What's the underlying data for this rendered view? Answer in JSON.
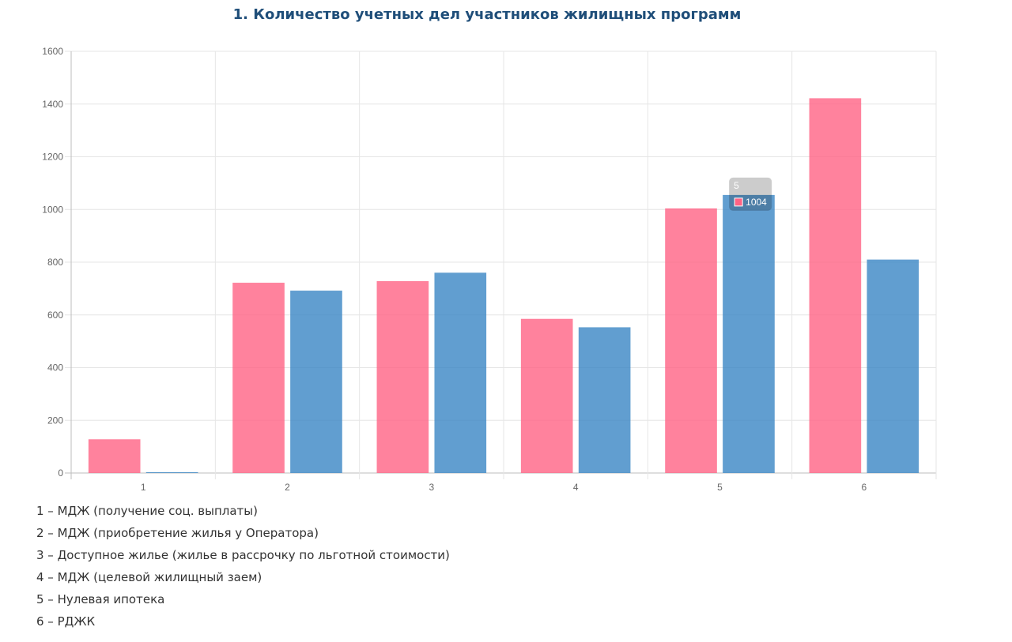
{
  "title": "1. Количество учетных дел участников жилищных программ",
  "chart_data": {
    "type": "bar",
    "categories": [
      "1",
      "2",
      "3",
      "4",
      "5",
      "6"
    ],
    "series": [
      {
        "values": [
          128,
          722,
          728,
          585,
          1004,
          1422
        ],
        "color": "#ff6384"
      },
      {
        "values": [
          3,
          692,
          760,
          553,
          1055,
          810
        ],
        "color": "#3a86c4"
      }
    ],
    "ylim": [
      0,
      1600
    ],
    "yticks": [
      0,
      200,
      400,
      600,
      800,
      1000,
      1200,
      1400,
      1600
    ],
    "grid": true,
    "tooltip": {
      "title": "5",
      "value": "1004",
      "series_index": 0
    }
  },
  "legend": [
    "1 – МДЖ (получение соц. выплаты)",
    "2 – МДЖ (приобретение жилья у Оператора)",
    "3 – Доступное жилье (жилье в рассрочку по льготной стоимости)",
    "4 – МДЖ (целевой жилищный заем)",
    "5 – Нулевая ипотека",
    "6 – РДЖК"
  ]
}
